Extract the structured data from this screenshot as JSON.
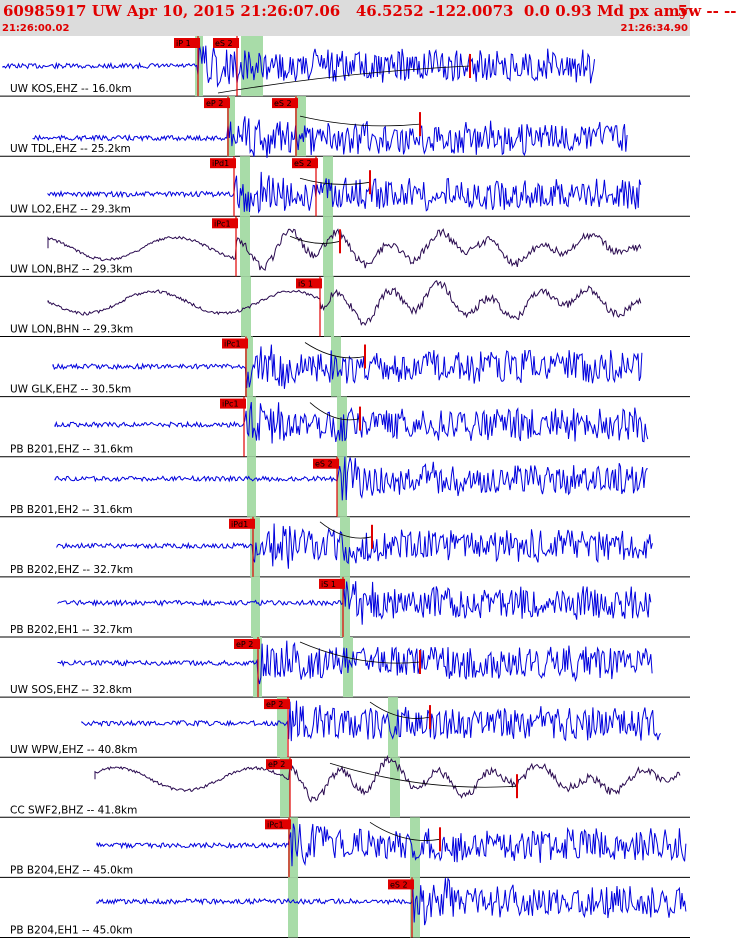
{
  "header": {
    "title": "60985917 UW Apr 10, 2015 21:26:07.06   46.5252 -122.0073  0.0 0.93 Md px amyw -- --",
    "trailing_number": "5",
    "start_time": "21:26:00.02",
    "end_time": "21:26:34.90"
  },
  "colors": {
    "trace_blue": "#0000dd",
    "trace_dark": "#2a0a50",
    "pick": "#e00000",
    "pick_window": "#a8dca8",
    "header_bg": "#dcdcdc"
  },
  "traces": [
    {
      "label": "UW KOS,EHZ -- 16.0km",
      "tone": "blue",
      "picks": [
        {
          "t": "iP 1"
        },
        {
          "t": "eS 2"
        }
      ]
    },
    {
      "label": "UW TDL,EHZ -- 25.2km",
      "tone": "blue",
      "picks": [
        {
          "t": "eP 2"
        },
        {
          "t": "eS 2"
        }
      ]
    },
    {
      "label": "UW LO2,EHZ -- 29.3km",
      "tone": "blue",
      "picks": [
        {
          "t": "iPd1"
        },
        {
          "t": "eS 2"
        }
      ]
    },
    {
      "label": "UW LON,BHZ -- 29.3km",
      "tone": "dark",
      "picks": [
        {
          "t": "iPc1"
        }
      ]
    },
    {
      "label": "UW LON,BHN -- 29.3km",
      "tone": "dark",
      "picks": [
        {
          "t": "iS 1"
        }
      ]
    },
    {
      "label": "UW GLK,EHZ -- 30.5km",
      "tone": "blue",
      "picks": [
        {
          "t": "iPc1"
        }
      ]
    },
    {
      "label": "PB B201,EHZ -- 31.6km",
      "tone": "blue",
      "picks": [
        {
          "t": "iPc1"
        }
      ]
    },
    {
      "label": "PB B201,EH2 -- 31.6km",
      "tone": "blue",
      "picks": [
        {
          "t": "eS 2"
        }
      ]
    },
    {
      "label": "PB B202,EHZ -- 32.7km",
      "tone": "blue",
      "picks": [
        {
          "t": "iPd1"
        }
      ]
    },
    {
      "label": "PB B202,EH1 -- 32.7km",
      "tone": "blue",
      "picks": [
        {
          "t": "iS 1"
        }
      ]
    },
    {
      "label": "UW SOS,EHZ -- 32.8km",
      "tone": "blue",
      "picks": [
        {
          "t": "eP 2"
        }
      ]
    },
    {
      "label": "UW WPW,EHZ -- 40.8km",
      "tone": "blue",
      "picks": [
        {
          "t": "eP 2"
        }
      ]
    },
    {
      "label": "CC SWF2,BHZ -- 41.8km",
      "tone": "dark",
      "picks": [
        {
          "t": "eP 2"
        }
      ]
    },
    {
      "label": "PB B204,EHZ -- 45.0km",
      "tone": "blue",
      "picks": [
        {
          "t": "iPc1"
        }
      ]
    },
    {
      "label": "PB B204,EH1 -- 45.0km",
      "tone": "blue",
      "picks": [
        {
          "t": "eS 2"
        }
      ]
    }
  ]
}
